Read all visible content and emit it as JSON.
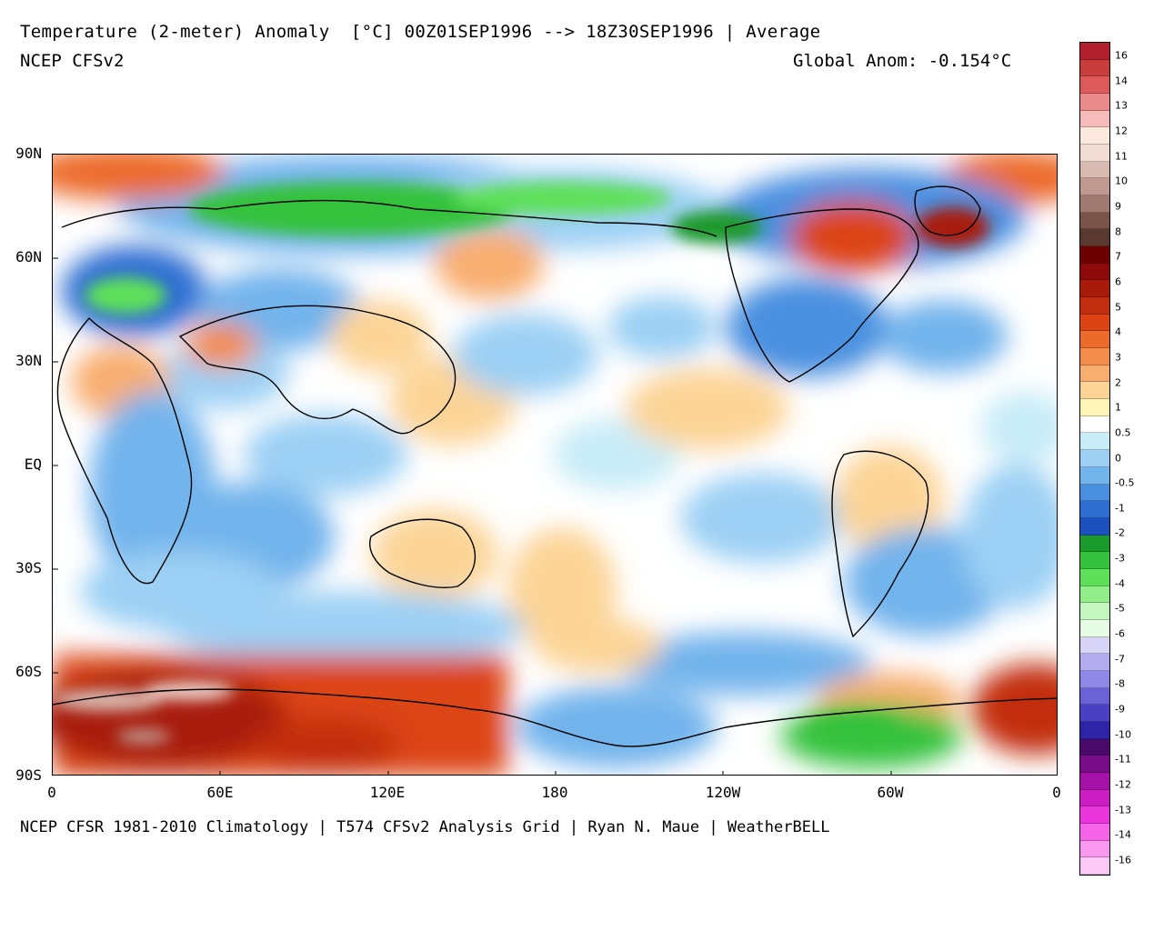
{
  "header": {
    "title": "Temperature (2-meter) Anomaly  [°C] 00Z01SEP1996 --> 18Z30SEP1996 | Average",
    "model": "NCEP CFSv2",
    "global_anom": "Global Anom: -0.154°C"
  },
  "footer": {
    "credits": "NCEP CFSR 1981-2010 Climatology | T574 CFSv2 Analysis Grid | Ryan N. Maue | WeatherBELL"
  },
  "axes": {
    "y_labels": [
      "90N",
      "60N",
      "30N",
      "EQ",
      "30S",
      "60S",
      "90S"
    ],
    "x_labels": [
      "0",
      "60E",
      "120E",
      "180",
      "120W",
      "60W",
      "0"
    ]
  },
  "legend": {
    "labels": [
      "16",
      "14",
      "13",
      "12",
      "11",
      "10",
      "9",
      "8",
      "7",
      "6",
      "5",
      "4",
      "3",
      "2",
      "1",
      "0.5",
      "0",
      "-0.5",
      "-1",
      "-2",
      "-3",
      "-4",
      "-5",
      "-6",
      "-7",
      "-8",
      "-9",
      "-10",
      "-11",
      "-12",
      "-13",
      "-14",
      "-16"
    ],
    "colors": [
      "#b21f2d",
      "#c83c3c",
      "#dc5a5a",
      "#ea8a8a",
      "#f6bcbc",
      "#fde8e0",
      "#f0dcd4",
      "#d8bab0",
      "#c09a90",
      "#a07a70",
      "#7a5448",
      "#5a3a30",
      "#6e0000",
      "#8c0a0a",
      "#a81a0a",
      "#c22e0e",
      "#dc4414",
      "#ec6a2c",
      "#f48c4c",
      "#f8ae70",
      "#fcd496",
      "#fff4b8",
      "#ffffff",
      "#c8ecf8",
      "#9cd0f4",
      "#72b4ec",
      "#4a90e0",
      "#2e6ed2",
      "#1c50bc",
      "#1a9a2a",
      "#34c23c",
      "#5ee05a",
      "#92ee8a",
      "#c4f6c0",
      "#e6fce4",
      "#d8d4f8",
      "#b4acf0",
      "#9088e6",
      "#6c62d8",
      "#4a40c4",
      "#2e24a8",
      "#4a0a6a",
      "#7a0c8a",
      "#a412a8",
      "#cc1cc4",
      "#ea34dc",
      "#f464e6",
      "#f898ee",
      "#fcc8f6"
    ]
  }
}
